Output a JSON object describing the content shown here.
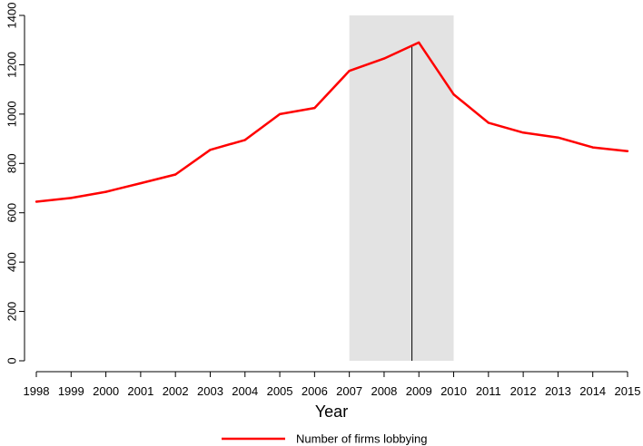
{
  "chart_data": {
    "type": "line",
    "x": [
      1998,
      1999,
      2000,
      2001,
      2002,
      2003,
      2004,
      2005,
      2006,
      2007,
      2008,
      2009,
      2010,
      2011,
      2012,
      2013,
      2014,
      2015
    ],
    "series": [
      {
        "name": "Number of firms lobbying",
        "color": "#ff0000",
        "values": [
          645,
          660,
          685,
          720,
          755,
          855,
          895,
          1000,
          1025,
          1175,
          1225,
          1290,
          1080,
          965,
          925,
          905,
          865,
          850
        ]
      }
    ],
    "xlabel": "Year",
    "ylabel": "",
    "xlim": [
      1998,
      2015
    ],
    "ylim": [
      0,
      1400
    ],
    "yticks": [
      0,
      200,
      400,
      600,
      800,
      1000,
      1200,
      1400
    ],
    "xticks": [
      1998,
      1999,
      2000,
      2001,
      2002,
      2003,
      2004,
      2005,
      2006,
      2007,
      2008,
      2009,
      2010,
      2011,
      2012,
      2013,
      2014,
      2015
    ],
    "shaded_region": {
      "from": 2007,
      "to": 2010,
      "color": "#e3e3e3"
    },
    "vertical_line": {
      "x": 2008.8,
      "from": 0,
      "to": 1280,
      "color": "#000000"
    },
    "grid": false,
    "legend_position": "bottom-center"
  }
}
